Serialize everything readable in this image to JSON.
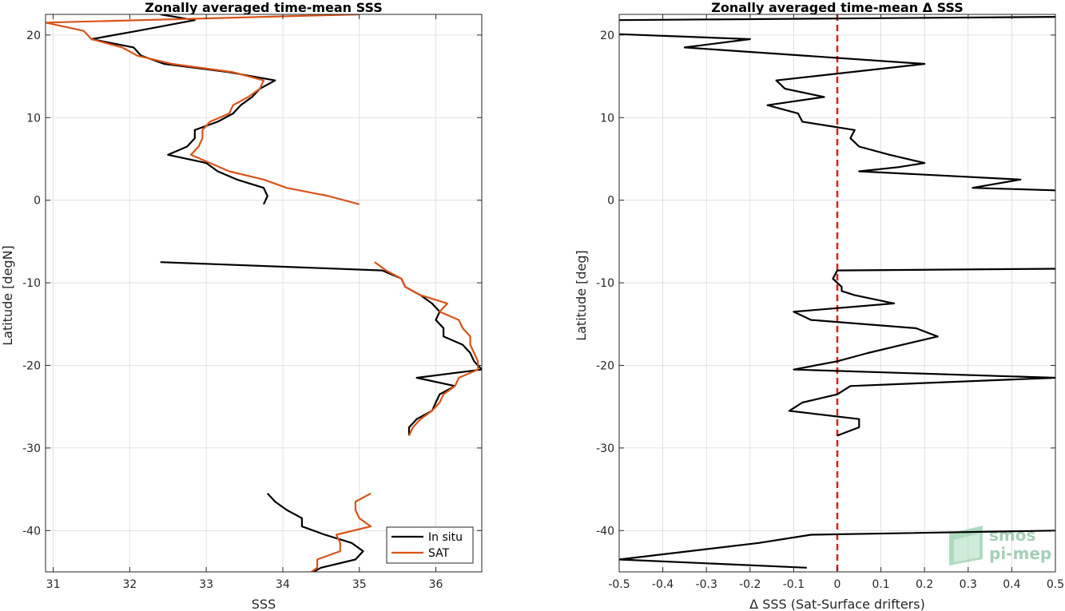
{
  "chart_data": [
    {
      "type": "line",
      "title": "Zonally averaged time-mean SSS",
      "xlabel": "SSS",
      "ylabel": "Latitude [degN]",
      "xlim": [
        30.9,
        36.6
      ],
      "ylim": [
        -45,
        22.5
      ],
      "xticks": [
        31,
        32,
        33,
        34,
        35,
        36
      ],
      "yticks": [
        20,
        10,
        0,
        -10,
        -20,
        -30,
        -40
      ],
      "grid": true,
      "legend": {
        "position": "bottom-right",
        "entries": [
          "In situ",
          "SAT"
        ]
      },
      "series": [
        {
          "name": "In situ",
          "color": "#000000",
          "segments": [
            [
              [
                32.4,
                22.5
              ],
              [
                32.85,
                21.8
              ],
              [
                32.1,
                20.5
              ],
              [
                31.5,
                19.5
              ],
              [
                32.05,
                18.5
              ],
              [
                32.15,
                17.5
              ],
              [
                32.45,
                16.5
              ],
              [
                33.3,
                15.5
              ],
              [
                33.9,
                14.5
              ],
              [
                33.7,
                13.5
              ],
              [
                33.6,
                12.5
              ],
              [
                33.45,
                11.5
              ],
              [
                33.35,
                10.5
              ],
              [
                33.15,
                9.5
              ],
              [
                32.85,
                8.5
              ],
              [
                32.85,
                7.5
              ],
              [
                32.75,
                6.5
              ],
              [
                32.5,
                5.5
              ],
              [
                33.0,
                4.5
              ],
              [
                33.15,
                3.5
              ],
              [
                33.4,
                2.5
              ],
              [
                33.75,
                1.5
              ],
              [
                33.8,
                0.5
              ],
              [
                33.75,
                -0.5
              ]
            ],
            [
              [
                32.4,
                -7.5
              ],
              [
                35.3,
                -8.5
              ],
              [
                35.55,
                -9.5
              ],
              [
                35.6,
                -10.5
              ],
              [
                35.8,
                -11.5
              ],
              [
                35.95,
                -12.5
              ],
              [
                36.05,
                -13.5
              ],
              [
                36.0,
                -14.5
              ],
              [
                36.1,
                -15.5
              ],
              [
                36.1,
                -16.5
              ],
              [
                36.35,
                -17.5
              ],
              [
                36.45,
                -18.5
              ],
              [
                36.5,
                -19.5
              ],
              [
                36.6,
                -20.5
              ],
              [
                35.75,
                -21.5
              ],
              [
                36.25,
                -22.5
              ],
              [
                36.05,
                -23.5
              ],
              [
                36.0,
                -24.5
              ],
              [
                35.95,
                -25.5
              ],
              [
                35.75,
                -26.5
              ],
              [
                35.65,
                -27.5
              ],
              [
                35.65,
                -28.5
              ]
            ],
            [
              [
                33.8,
                -35.5
              ],
              [
                33.9,
                -36.5
              ],
              [
                34.05,
                -37.5
              ],
              [
                34.25,
                -38.5
              ],
              [
                34.25,
                -39.5
              ],
              [
                34.55,
                -40.5
              ],
              [
                34.9,
                -41.5
              ],
              [
                35.05,
                -42.5
              ],
              [
                34.95,
                -43.5
              ],
              [
                34.5,
                -44.5
              ],
              [
                34.3,
                -45.5
              ]
            ]
          ]
        },
        {
          "name": "SAT",
          "color": "#D95319",
          "segments": [
            [
              [
                35.0,
                22.5
              ],
              [
                30.9,
                21.5
              ],
              [
                31.4,
                20.5
              ],
              [
                31.5,
                19.5
              ],
              [
                31.9,
                18.5
              ],
              [
                32.1,
                17.5
              ],
              [
                32.55,
                16.5
              ],
              [
                33.35,
                15.5
              ],
              [
                33.75,
                14.5
              ],
              [
                33.7,
                13.5
              ],
              [
                33.55,
                12.5
              ],
              [
                33.35,
                11.5
              ],
              [
                33.3,
                10.5
              ],
              [
                33.05,
                9.5
              ],
              [
                32.95,
                8.5
              ],
              [
                32.95,
                7.5
              ],
              [
                32.9,
                6.5
              ],
              [
                32.8,
                5.5
              ],
              [
                33.05,
                4.5
              ],
              [
                33.3,
                3.5
              ],
              [
                33.75,
                2.5
              ],
              [
                34.05,
                1.5
              ],
              [
                34.6,
                0.5
              ],
              [
                35.0,
                -0.5
              ]
            ],
            [
              [
                35.2,
                -7.5
              ],
              [
                35.35,
                -8.5
              ],
              [
                35.55,
                -9.5
              ],
              [
                35.6,
                -10.5
              ],
              [
                35.8,
                -11.5
              ],
              [
                36.15,
                -12.5
              ],
              [
                36.05,
                -13.5
              ],
              [
                36.3,
                -14.5
              ],
              [
                36.35,
                -15.5
              ],
              [
                36.45,
                -16.5
              ],
              [
                36.45,
                -17.5
              ],
              [
                36.5,
                -18.5
              ],
              [
                36.55,
                -19.5
              ],
              [
                36.55,
                -20.5
              ],
              [
                36.3,
                -21.5
              ],
              [
                36.25,
                -22.5
              ],
              [
                36.1,
                -23.5
              ],
              [
                36.05,
                -24.5
              ],
              [
                35.95,
                -25.5
              ],
              [
                35.8,
                -26.5
              ],
              [
                35.7,
                -27.5
              ],
              [
                35.65,
                -28.5
              ]
            ],
            [
              [
                35.15,
                -35.5
              ],
              [
                34.95,
                -36.5
              ],
              [
                34.95,
                -37.5
              ],
              [
                35.0,
                -38.5
              ],
              [
                35.15,
                -39.5
              ],
              [
                34.7,
                -40.5
              ],
              [
                34.75,
                -41.5
              ],
              [
                34.75,
                -42.5
              ],
              [
                34.45,
                -43.5
              ],
              [
                34.45,
                -44.5
              ],
              [
                34.3,
                -45.5
              ]
            ]
          ]
        }
      ]
    },
    {
      "type": "line",
      "title": "Zonally averaged time-mean Δ SSS",
      "xlabel": "Δ SSS (Sat-Surface drifters)",
      "ylabel": "Latitude [deg]",
      "xlim": [
        -0.5,
        0.5
      ],
      "ylim": [
        -45,
        22.5
      ],
      "xticks": [
        -0.5,
        -0.4,
        -0.3,
        -0.2,
        -0.1,
        0,
        0.1,
        0.2,
        0.3,
        0.4,
        0.5
      ],
      "yticks": [
        20,
        10,
        0,
        -10,
        -20,
        -30,
        -40
      ],
      "grid": true,
      "reference_line": {
        "x": 0,
        "color": "#e31a1c",
        "style": "dashed"
      },
      "series": [
        {
          "color": "#000000",
          "segments": [
            [
              [
                -0.5,
                21.8
              ],
              [
                0.5,
                22.2
              ]
            ],
            [
              [
                -0.5,
                20.1
              ],
              [
                -0.2,
                19.5
              ],
              [
                -0.35,
                18.5
              ],
              [
                0.2,
                16.5
              ],
              [
                -0.14,
                14.5
              ],
              [
                -0.12,
                13.5
              ],
              [
                -0.03,
                12.5
              ],
              [
                -0.16,
                11.5
              ],
              [
                -0.09,
                10.5
              ],
              [
                -0.08,
                9.5
              ],
              [
                0.04,
                8.5
              ],
              [
                0.03,
                7.5
              ],
              [
                0.05,
                6.5
              ],
              [
                0.12,
                5.5
              ],
              [
                0.2,
                4.5
              ],
              [
                0.14,
                4.0
              ],
              [
                0.05,
                3.5
              ],
              [
                0.42,
                2.5
              ],
              [
                0.31,
                1.5
              ],
              [
                0.5,
                1.2
              ]
            ],
            [
              [
                0.5,
                -8.3
              ],
              [
                0.0,
                -8.5
              ],
              [
                -0.01,
                -9.5
              ],
              [
                0.01,
                -10.5
              ],
              [
                0.01,
                -11.0
              ],
              [
                0.04,
                -11.5
              ],
              [
                0.13,
                -12.5
              ],
              [
                -0.1,
                -13.5
              ],
              [
                -0.06,
                -14.5
              ],
              [
                0.18,
                -15.5
              ],
              [
                0.23,
                -16.5
              ],
              [
                0.15,
                -17.5
              ],
              [
                0.07,
                -18.5
              ],
              [
                0.0,
                -19.5
              ],
              [
                -0.1,
                -20.5
              ],
              [
                0.5,
                -21.5
              ],
              [
                0.03,
                -22.5
              ],
              [
                0.0,
                -23.5
              ],
              [
                -0.08,
                -24.5
              ],
              [
                -0.11,
                -25.5
              ],
              [
                0.05,
                -26.5
              ],
              [
                0.05,
                -27.5
              ],
              [
                0.0,
                -28.5
              ]
            ],
            [
              [
                0.5,
                -40.0
              ],
              [
                -0.06,
                -40.5
              ],
              [
                -0.18,
                -41.5
              ],
              [
                -0.5,
                -43.5
              ],
              [
                -0.07,
                -44.5
              ]
            ]
          ]
        }
      ]
    }
  ],
  "watermark": {
    "line1": "smos",
    "line2": "pi-mep"
  }
}
